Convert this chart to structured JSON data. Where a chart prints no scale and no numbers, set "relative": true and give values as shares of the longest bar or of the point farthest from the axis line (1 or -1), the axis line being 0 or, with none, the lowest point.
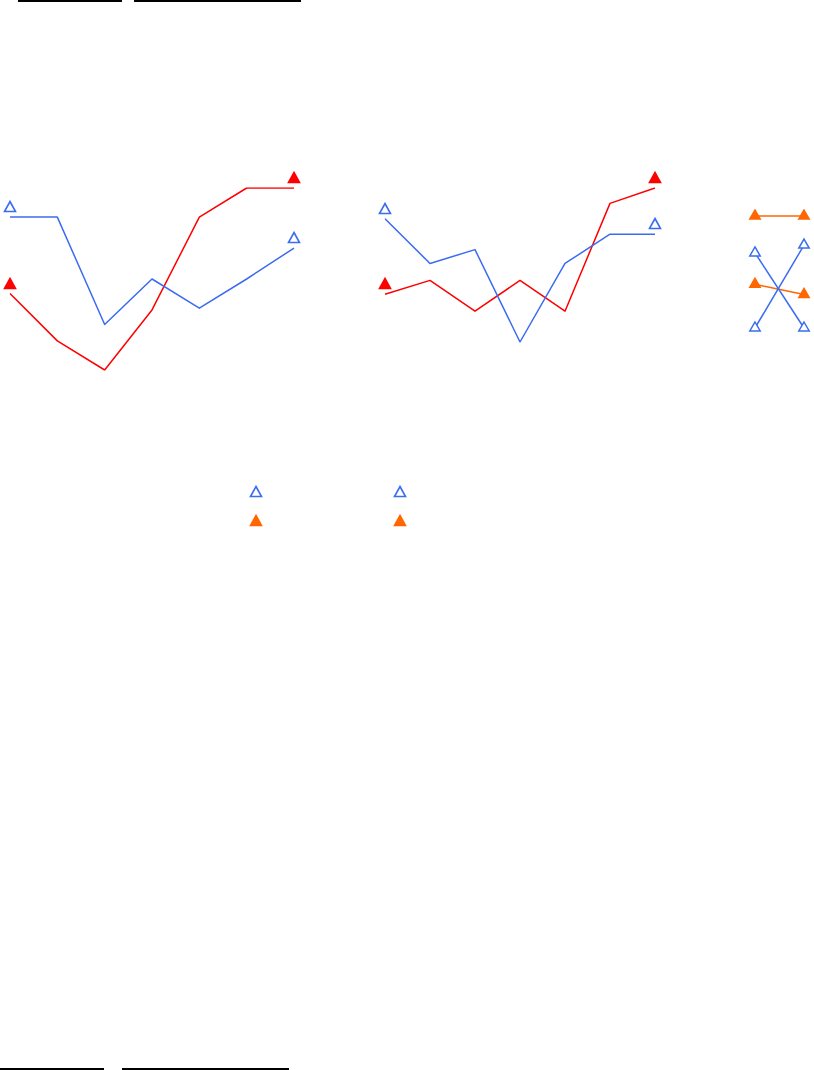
{
  "chart_data": [
    {
      "type": "line",
      "relative": true,
      "legend": false,
      "categories": [
        null,
        null,
        null,
        null,
        null,
        null,
        null
      ],
      "series": [
        {
          "color": "#3b6cf0",
          "values": [
            0.84,
            0.84,
            0.25,
            0.5,
            0.34,
            0.5,
            0.67
          ]
        },
        {
          "color": "#ff0000",
          "values": [
            0.42,
            0.16,
            0,
            0.33,
            0.84,
            1,
            1
          ]
        }
      ]
    },
    {
      "type": "line",
      "relative": true,
      "legend": false,
      "categories": [
        null,
        null,
        null,
        null,
        null,
        null,
        null
      ],
      "series": [
        {
          "color": "#3b6cf0",
          "values": [
            0.8,
            0.51,
            0.6,
            0,
            0.51,
            0.7,
            0.7
          ]
        },
        {
          "color": "#ff0000",
          "values": [
            0.31,
            0.4,
            0.2,
            0.4,
            0.2,
            0.9,
            1
          ]
        }
      ]
    },
    {
      "type": "line",
      "relative": true,
      "marker": "triangle",
      "legend": false,
      "categories": [
        null,
        null
      ],
      "series": [
        {
          "color": "#3b6cf0",
          "values": [
            0,
            0.74
          ]
        },
        {
          "color": "#ff6600",
          "values": [
            1,
            1
          ]
        },
        {
          "color": "#3b6cf0",
          "values": [
            0.67,
            0
          ]
        },
        {
          "color": "#ff6600",
          "values": [
            0.39,
            0.3
          ]
        }
      ]
    }
  ]
}
